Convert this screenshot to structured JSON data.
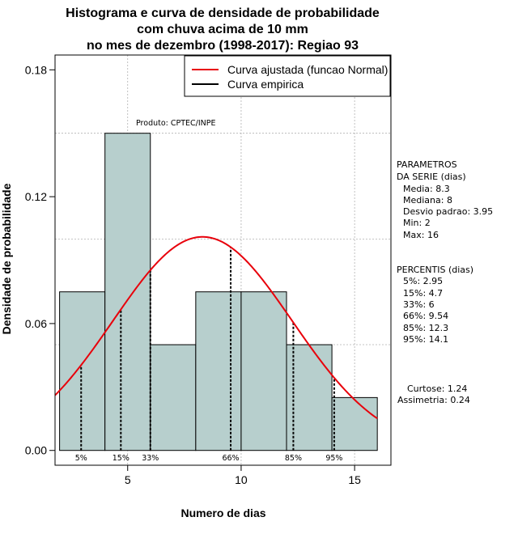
{
  "chart_data": {
    "type": "bar",
    "title_lines": [
      "Histograma e curva de densidade de probabilidade",
      "com chuva acima de 10 mm",
      "no mes de dezembro (1998-2017): Regiao 93"
    ],
    "xlabel": "Numero de dias",
    "ylabel": "Densidade de probabilidade",
    "xlim": [
      1.8,
      16.6
    ],
    "ylim": [
      -0.007,
      0.187
    ],
    "x_ticks": [
      5,
      10,
      15
    ],
    "y_ticks": [
      0.0,
      0.06,
      0.12,
      0.18
    ],
    "y_tick_labels": [
      "0.00",
      "0.06",
      "0.12",
      "0.18"
    ],
    "x_grid": [
      5,
      10,
      15
    ],
    "y_grid": [
      0.05,
      0.1,
      0.15
    ],
    "histogram": {
      "breaks": [
        2,
        4,
        6,
        8,
        10,
        12,
        14,
        16
      ],
      "densities": [
        0.075,
        0.15,
        0.05,
        0.075,
        0.075,
        0.05,
        0.025
      ]
    },
    "normal_fit": {
      "mean": 8.3,
      "sd": 3.95
    },
    "percentile_lines": [
      {
        "label": "5%",
        "x": 2.95
      },
      {
        "label": "15%",
        "x": 4.7
      },
      {
        "label": "33%",
        "x": 6.0
      },
      {
        "label": "66%",
        "x": 9.54
      },
      {
        "label": "85%",
        "x": 12.3
      },
      {
        "label": "95%",
        "x": 14.1
      }
    ],
    "legend": {
      "position": "top-right",
      "entries": [
        {
          "label": "Curva ajustada (funcao Normal)",
          "color": "#e8000b"
        },
        {
          "label": "Curva empirica",
          "color": "#000000"
        }
      ]
    },
    "annotation": "Produto: CPTEC/INPE",
    "side_panel": {
      "parametros": [
        "PARAMETROS",
        "DA SERIE (dias)",
        "Media: 8.3",
        "Mediana: 8",
        "Desvio padrao: 3.95",
        "Min: 2",
        "Max: 16"
      ],
      "percentis": [
        "PERCENTIS (dias)",
        "5%: 2.95",
        "15%: 4.7",
        "33%: 6",
        "66%: 9.54",
        "85%: 12.3",
        "95%: 14.1"
      ],
      "forma": [
        "Curtose: 1.24",
        "Assimetria: 0.24"
      ]
    },
    "colors": {
      "bar_fill": "#b7cfcd",
      "bar_stroke": "#000000",
      "fit_curve": "#e8000b",
      "grid": "#b0b0b0"
    }
  }
}
